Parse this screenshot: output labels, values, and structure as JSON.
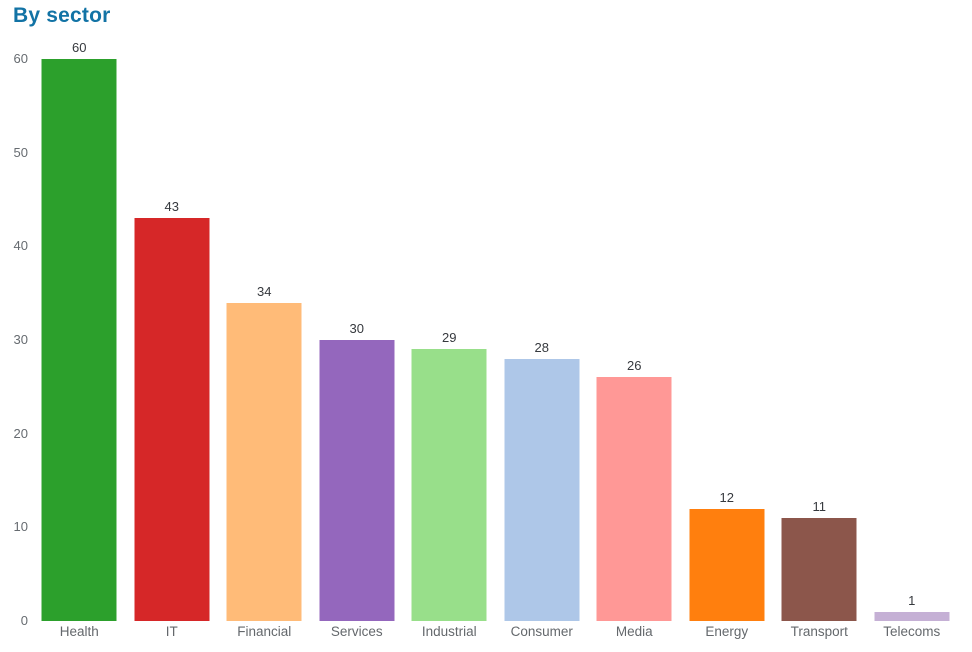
{
  "chart_data": {
    "type": "bar",
    "title": "By sector",
    "categories": [
      "Health",
      "IT",
      "Financial",
      "Services",
      "Industrial",
      "Consumer",
      "Media",
      "Energy",
      "Transport",
      "Telecoms"
    ],
    "values": [
      60,
      43,
      34,
      30,
      29,
      28,
      26,
      12,
      11,
      1
    ],
    "bar_colors": [
      "#2ca02c",
      "#d62728",
      "#ffbb78",
      "#9467bd",
      "#98df8a",
      "#aec7e8",
      "#ff9896",
      "#ff7f0e",
      "#8c564b",
      "#c5b0d5"
    ],
    "value_labels": [
      "60",
      "43",
      "34",
      "30",
      "29",
      "28",
      "26",
      "12",
      "11",
      "1"
    ],
    "xlabel": "",
    "ylabel": "",
    "ylim": [
      0,
      60
    ],
    "yticks": [
      0,
      10,
      20,
      30,
      40,
      50,
      60
    ],
    "grid": false,
    "legend": "none",
    "value_labels_shown": true
  },
  "styles": {
    "title_color": "#1273a5",
    "axis_tick_color": "#666b70",
    "category_label_color": "#64686c",
    "value_label_color": "#36393e",
    "background_color": "#ffffff"
  }
}
